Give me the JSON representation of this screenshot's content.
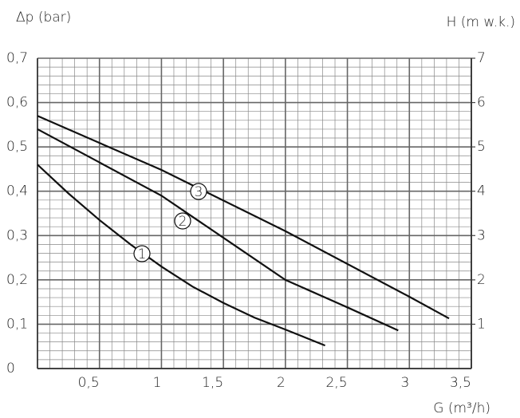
{
  "chart_data": {
    "type": "line",
    "title": "Δp (bar)",
    "y2_label": "H (m w.k.)",
    "x_label": "G (m³/h)",
    "xlim": [
      0,
      3.5
    ],
    "xticks": [
      {
        "value": 0.5,
        "label": "0,5"
      },
      1,
      {
        "value": 1.5,
        "label": "1,5"
      },
      2,
      {
        "value": 2.5,
        "label": "2,5"
      },
      3,
      {
        "value": 3.5,
        "label": "3,5"
      }
    ],
    "ylim": [
      0,
      0.7
    ],
    "yticks": [
      0,
      {
        "value": 0.1,
        "label": "0,1"
      },
      {
        "value": 0.2,
        "label": "0,2"
      },
      {
        "value": 0.3,
        "label": "0,3"
      },
      {
        "value": 0.4,
        "label": "0,4"
      },
      {
        "value": 0.5,
        "label": "0,5"
      },
      {
        "value": 0.6,
        "label": "0,6"
      },
      {
        "value": 0.7,
        "label": "0,7"
      }
    ],
    "y2lim": [
      0,
      7
    ],
    "y2ticks": [
      1,
      2,
      3,
      4,
      5,
      6,
      7
    ],
    "grid": true,
    "minor_grid_step": {
      "x": 0.1,
      "y": 0.02
    },
    "series": [
      {
        "name": "1",
        "color": "#111111",
        "x": [
          0,
          0.25,
          0.5,
          0.75,
          1,
          1.25,
          1.5,
          1.75,
          2,
          2.32
        ],
        "values": [
          0.46,
          0.395,
          0.335,
          0.28,
          0.23,
          0.185,
          0.148,
          0.115,
          0.088,
          0.052
        ]
      },
      {
        "name": "2",
        "color": "#111111",
        "x": [
          0,
          0.5,
          1,
          1.5,
          2,
          2.5,
          2.91
        ],
        "values": [
          0.54,
          0.465,
          0.39,
          0.295,
          0.2,
          0.138,
          0.086
        ]
      },
      {
        "name": "3",
        "color": "#111111",
        "x": [
          0,
          1,
          2,
          3,
          3.32
        ],
        "values": [
          0.57,
          0.448,
          0.31,
          0.162,
          0.113
        ]
      }
    ]
  }
}
